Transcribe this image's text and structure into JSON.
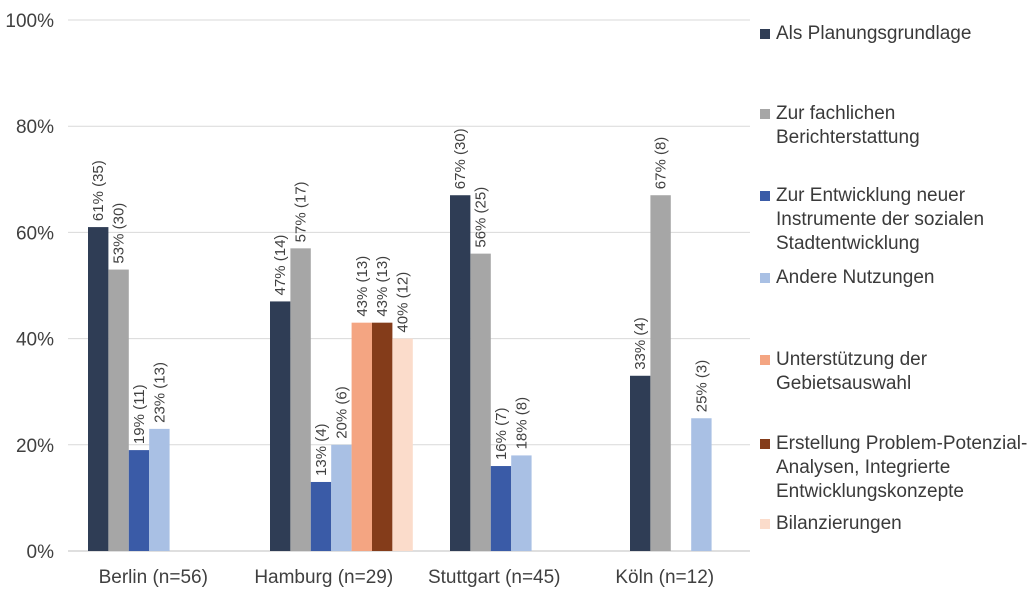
{
  "chart_data": {
    "type": "bar",
    "categories": [
      "Berlin (n=56)",
      "Hamburg (n=29)",
      "Stuttgart (n=45)",
      "Köln (n=12)"
    ],
    "ylim": [
      0,
      100
    ],
    "yticks": [
      0,
      20,
      40,
      60,
      80,
      100
    ],
    "ytick_labels": [
      "0%",
      "20%",
      "40%",
      "60%",
      "80%",
      "100%"
    ],
    "grid": true,
    "legend_position": "right",
    "series": [
      {
        "name": "Als Planungsgrundlage",
        "color": "#2f3d55",
        "values": [
          61,
          47,
          67,
          33
        ],
        "labels": [
          "61% (35)",
          "47% (14)",
          "67% (30)",
          "33% (4)"
        ]
      },
      {
        "name": "Zur fachlichen Berichterstattung",
        "color": "#a6a6a6",
        "values": [
          53,
          57,
          56,
          67
        ],
        "labels": [
          "53% (30)",
          "57% (17)",
          "56% (25)",
          "67% (8)"
        ]
      },
      {
        "name": "Zur Entwicklung neuer Instrumente der sozialen Stadtentwicklung",
        "color": "#3a5ba7",
        "values": [
          19,
          13,
          16,
          null
        ],
        "labels": [
          "19% (11)",
          "13% (4)",
          "16% (7)",
          ""
        ]
      },
      {
        "name": "Andere Nutzungen",
        "color": "#a9c0e4",
        "values": [
          23,
          20,
          18,
          25
        ],
        "labels": [
          "23% (13)",
          "20% (6)",
          "18% (8)",
          "25% (3)"
        ]
      },
      {
        "name": "Unterstützung der Gebietsauswahl",
        "color": "#f4a582",
        "values": [
          null,
          43,
          null,
          null
        ],
        "labels": [
          "",
          "43% (13)",
          "",
          ""
        ]
      },
      {
        "name": "Erstellung Problem-Potenzial-Analysen, Integrierte Entwicklungskonzepte",
        "color": "#843c1a",
        "values": [
          null,
          43,
          null,
          null
        ],
        "labels": [
          "",
          "43% (13)",
          "",
          ""
        ]
      },
      {
        "name": "Bilanzierungen",
        "color": "#fbdccb",
        "values": [
          null,
          40,
          null,
          null
        ],
        "labels": [
          "",
          "40% (12)",
          "",
          ""
        ]
      }
    ]
  },
  "legend_display": [
    "Als Planungsgrundlage",
    "Zur fachlichen\nBerichterstattung",
    "Zur Entwicklung neuer\nInstrumente der sozialen\nStadtentwicklung",
    "Andere Nutzungen",
    "Unterstützung der\nGebietsauswahl",
    "Erstellung Problem-Potenzial-\nAnalysen, Integrierte\nEntwicklungskonzepte",
    "Bilanzierungen"
  ]
}
